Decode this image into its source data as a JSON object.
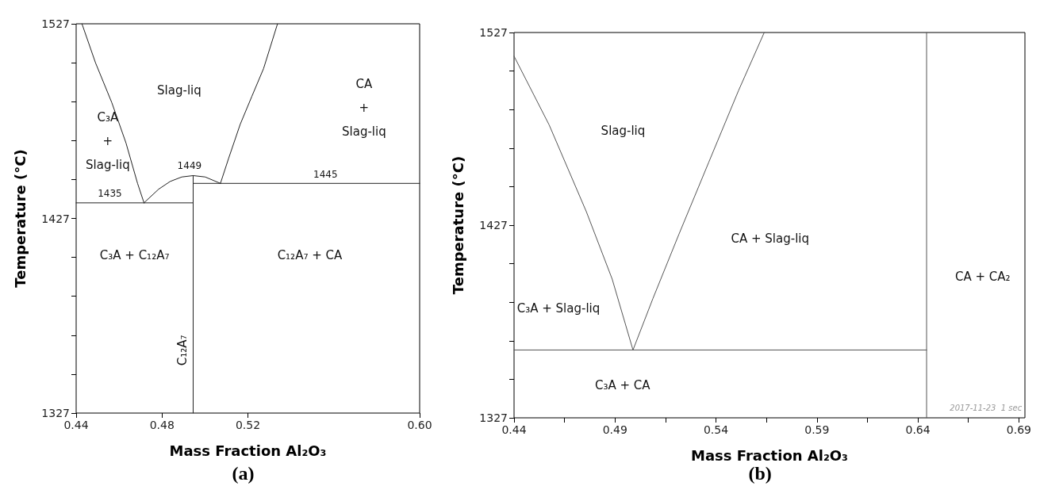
{
  "chart_data": [
    {
      "type": "line",
      "title": "(a)",
      "xlabel": "Mass Fraction Al₂O₃",
      "ylabel": "Temperature (°C)",
      "xlim": [
        0.44,
        0.6
      ],
      "ylim": [
        1327,
        1527
      ],
      "xticks": [
        0.44,
        0.48,
        0.52,
        {
          "value": 0.6,
          "label": "0.60"
        }
      ],
      "yticks": [
        1327,
        {
          "value": 1347,
          "label": null
        },
        {
          "value": 1367,
          "label": null
        },
        {
          "value": 1387,
          "label": null
        },
        {
          "value": 1407,
          "label": null
        },
        1427,
        {
          "value": 1447,
          "label": null
        },
        {
          "value": 1467,
          "label": null
        },
        {
          "value": 1487,
          "label": null
        },
        {
          "value": 1507,
          "label": null
        },
        1527
      ],
      "grid": false,
      "marker": "none",
      "line_style": "solid",
      "series": [
        {
          "color": "#222222",
          "x": [
            0.4427,
            0.449,
            0.4566,
            0.4632,
            0.4686,
            0.4716
          ],
          "values": [
            1527,
            1507,
            1486.5,
            1465.8,
            1445,
            1435
          ]
        },
        {
          "color": "#222222",
          "x": [
            0.4716,
            0.4784,
            0.4838,
            0.4892,
            0.4945,
            0.5001,
            0.5072
          ],
          "values": [
            1435,
            1442,
            1446,
            1448.3,
            1449,
            1448.3,
            1445
          ]
        },
        {
          "color": "#222222",
          "x": [
            0.5072,
            0.511,
            0.5164,
            0.5218,
            0.5273,
            0.5338
          ],
          "values": [
            1445,
            1457.8,
            1475.3,
            1489.6,
            1504,
            1527
          ]
        },
        {
          "color": "#222222",
          "x": [
            0.44,
            0.4945
          ],
          "values": [
            1435,
            1435
          ]
        },
        {
          "color": "#222222",
          "x": [
            0.4945,
            0.6
          ],
          "values": [
            1445,
            1445
          ]
        },
        {
          "color": "#222222",
          "x": [
            0.4945,
            0.4945
          ],
          "values": [
            1327,
            1449
          ]
        }
      ],
      "annotations": [
        "Slag-liq",
        "CA\n+\nSlag-liq",
        "C₃A\n+\nSlag-liq",
        "C₃A + C₁₂A₇",
        "C₁₂A₇ + CA",
        "C₁₂A₇",
        "1435",
        "1449",
        "1445"
      ]
    },
    {
      "type": "line",
      "title": "(b)",
      "xlabel": "Mass Fraction Al₂O₃",
      "ylabel": "Temperature (°C)",
      "xlim": [
        0.44,
        0.693
      ],
      "ylim": [
        1327,
        1527
      ],
      "xticks": [
        0.44,
        {
          "value": 0.465,
          "label": null
        },
        0.49,
        {
          "value": 0.515,
          "label": null
        },
        0.54,
        {
          "value": 0.565,
          "label": null
        },
        0.59,
        {
          "value": 0.615,
          "label": null
        },
        0.64,
        {
          "value": 0.665,
          "label": null
        },
        0.69
      ],
      "yticks": [
        1327,
        {
          "value": 1347,
          "label": null
        },
        {
          "value": 1367,
          "label": null
        },
        {
          "value": 1387,
          "label": null
        },
        {
          "value": 1407,
          "label": null
        },
        1427,
        {
          "value": 1447,
          "label": null
        },
        {
          "value": 1467,
          "label": null
        },
        {
          "value": 1487,
          "label": null
        },
        {
          "value": 1507,
          "label": null
        },
        1527
      ],
      "grid": false,
      "marker": "none",
      "line_style": "solid",
      "series": [
        {
          "color": "#555555",
          "x": [
            0.44,
            0.4574,
            0.4758,
            0.4886,
            0.4989
          ],
          "values": [
            1514.7,
            1479,
            1434,
            1399,
            1362.2
          ]
        },
        {
          "color": "#555555",
          "x": [
            0.4989,
            0.5088,
            0.5217,
            0.5364,
            0.5511,
            0.5639
          ],
          "values": [
            1362.2,
            1389,
            1422.4,
            1459.6,
            1496.7,
            1527
          ]
        },
        {
          "color": "#555555",
          "x": [
            0.44,
            0.6443
          ],
          "values": [
            1362.2,
            1362.2
          ]
        },
        {
          "color": "#555555",
          "x": [
            0.6443,
            0.6443
          ],
          "values": [
            1327,
            1527
          ]
        }
      ],
      "annotations": [
        "Slag-liq",
        "CA + Slag-liq",
        "C₃A + Slag-liq",
        "C₃A + CA",
        "CA + CA₂",
        "2017-11-23  1 sec"
      ]
    }
  ]
}
